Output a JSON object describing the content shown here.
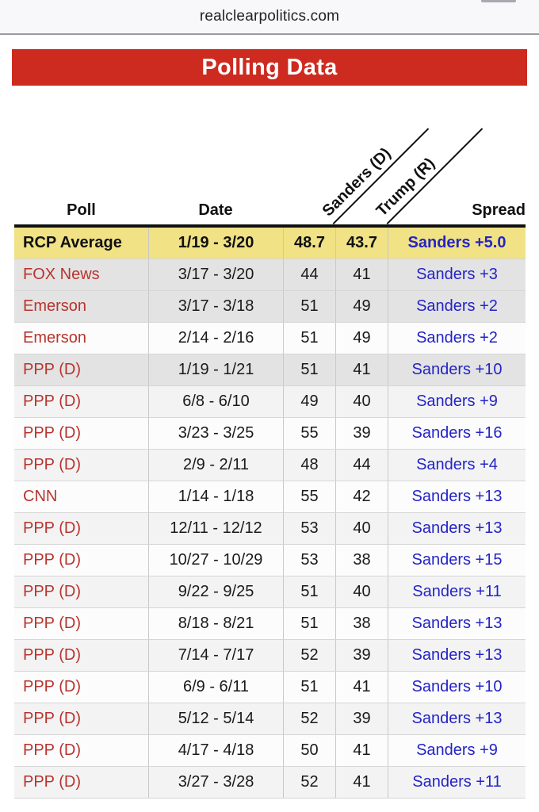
{
  "browser": {
    "address": "realclearpolitics.com"
  },
  "banner": {
    "title": "Polling Data"
  },
  "colors": {
    "banner_red": "#cd2a20",
    "poll_link_red": "#b8342e",
    "spread_link_blue": "#2424c6",
    "average_row_yellow": "#f0e285",
    "highlight_row_gray": "#e3e3e3",
    "alt_row_light": "#f3f3f4",
    "alt_row_white": "#fcfcfd",
    "topbar_bg": "#f8f8fa"
  },
  "table": {
    "headers": {
      "poll": "Poll",
      "date": "Date",
      "sanders": "Sanders (D)",
      "trump": "Trump (R)",
      "spread": "Spread"
    },
    "average_row": {
      "poll": "RCP Average",
      "date": "1/19 - 3/20",
      "sanders": "48.7",
      "trump": "43.7",
      "spread": "Sanders +5.0"
    },
    "rows": [
      {
        "poll": "FOX News",
        "date": "3/17 - 3/20",
        "sanders": "44",
        "trump": "41",
        "spread": "Sanders +3",
        "shade": "dark"
      },
      {
        "poll": "Emerson",
        "date": "3/17 - 3/18",
        "sanders": "51",
        "trump": "49",
        "spread": "Sanders +2",
        "shade": "dark"
      },
      {
        "poll": "Emerson",
        "date": "2/14 - 2/16",
        "sanders": "51",
        "trump": "49",
        "spread": "Sanders +2",
        "shade": "white"
      },
      {
        "poll": "PPP (D)",
        "date": "1/19 - 1/21",
        "sanders": "51",
        "trump": "41",
        "spread": "Sanders +10",
        "shade": "dark"
      },
      {
        "poll": "PPP (D)",
        "date": "6/8 - 6/10",
        "sanders": "49",
        "trump": "40",
        "spread": "Sanders +9",
        "shade": "light"
      },
      {
        "poll": "PPP (D)",
        "date": "3/23 - 3/25",
        "sanders": "55",
        "trump": "39",
        "spread": "Sanders +16",
        "shade": "white"
      },
      {
        "poll": "PPP (D)",
        "date": "2/9 - 2/11",
        "sanders": "48",
        "trump": "44",
        "spread": "Sanders +4",
        "shade": "light"
      },
      {
        "poll": "CNN",
        "date": "1/14 - 1/18",
        "sanders": "55",
        "trump": "42",
        "spread": "Sanders +13",
        "shade": "white"
      },
      {
        "poll": "PPP (D)",
        "date": "12/11 - 12/12",
        "sanders": "53",
        "trump": "40",
        "spread": "Sanders +13",
        "shade": "light"
      },
      {
        "poll": "PPP (D)",
        "date": "10/27 - 10/29",
        "sanders": "53",
        "trump": "38",
        "spread": "Sanders +15",
        "shade": "white"
      },
      {
        "poll": "PPP (D)",
        "date": "9/22 - 9/25",
        "sanders": "51",
        "trump": "40",
        "spread": "Sanders +11",
        "shade": "light"
      },
      {
        "poll": "PPP (D)",
        "date": "8/18 - 8/21",
        "sanders": "51",
        "trump": "38",
        "spread": "Sanders +13",
        "shade": "white"
      },
      {
        "poll": "PPP (D)",
        "date": "7/14 - 7/17",
        "sanders": "52",
        "trump": "39",
        "spread": "Sanders +13",
        "shade": "light"
      },
      {
        "poll": "PPP (D)",
        "date": "6/9 - 6/11",
        "sanders": "51",
        "trump": "41",
        "spread": "Sanders +10",
        "shade": "white"
      },
      {
        "poll": "PPP (D)",
        "date": "5/12 - 5/14",
        "sanders": "52",
        "trump": "39",
        "spread": "Sanders +13",
        "shade": "light"
      },
      {
        "poll": "PPP (D)",
        "date": "4/17 - 4/18",
        "sanders": "50",
        "trump": "41",
        "spread": "Sanders +9",
        "shade": "white"
      },
      {
        "poll": "PPP (D)",
        "date": "3/27 - 3/28",
        "sanders": "52",
        "trump": "41",
        "spread": "Sanders +11",
        "shade": "light"
      }
    ]
  }
}
